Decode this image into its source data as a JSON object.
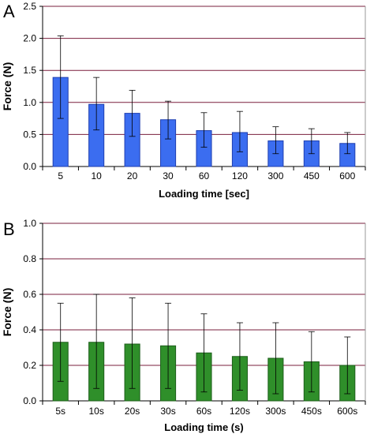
{
  "figure": {
    "panels": [
      "A",
      "B"
    ]
  },
  "chart_data": [
    {
      "type": "bar",
      "panel": "A",
      "categories": [
        "5",
        "10",
        "20",
        "30",
        "60",
        "120",
        "300",
        "450",
        "600"
      ],
      "values": [
        1.39,
        0.97,
        0.83,
        0.73,
        0.56,
        0.53,
        0.4,
        0.4,
        0.36
      ],
      "error_upper": [
        2.04,
        1.39,
        1.19,
        1.02,
        0.84,
        0.86,
        0.62,
        0.59,
        0.53
      ],
      "error_lower": [
        0.75,
        0.57,
        0.47,
        0.43,
        0.3,
        0.23,
        0.2,
        0.2,
        0.2
      ],
      "xlabel": "Loading time [sec]",
      "ylabel": "Force (N)",
      "ylim": [
        0,
        2.5
      ],
      "yticks": [
        "0.0",
        "0.5",
        "1.0",
        "1.5",
        "2.0",
        "2.5"
      ],
      "grid": true,
      "bar_color": "#3b6df0",
      "bar_edge": "#1f3fb0"
    },
    {
      "type": "bar",
      "panel": "B",
      "categories": [
        "5s",
        "10s",
        "20s",
        "30s",
        "60s",
        "120s",
        "300s",
        "450s",
        "600s"
      ],
      "values": [
        0.33,
        0.33,
        0.32,
        0.31,
        0.27,
        0.25,
        0.24,
        0.22,
        0.2
      ],
      "error_upper": [
        0.55,
        0.6,
        0.58,
        0.55,
        0.49,
        0.44,
        0.44,
        0.39,
        0.36
      ],
      "error_lower": [
        0.11,
        0.07,
        0.07,
        0.07,
        0.05,
        0.06,
        0.04,
        0.05,
        0.04
      ],
      "xlabel": "Loading time (s)",
      "ylabel": "Force (N)",
      "ylim": [
        0,
        1.0
      ],
      "yticks": [
        "0.0",
        "0.2",
        "0.4",
        "0.6",
        "0.8",
        "1.0"
      ],
      "grid": true,
      "bar_color": "#2f8f2a",
      "bar_edge": "#1d5e1a"
    }
  ]
}
